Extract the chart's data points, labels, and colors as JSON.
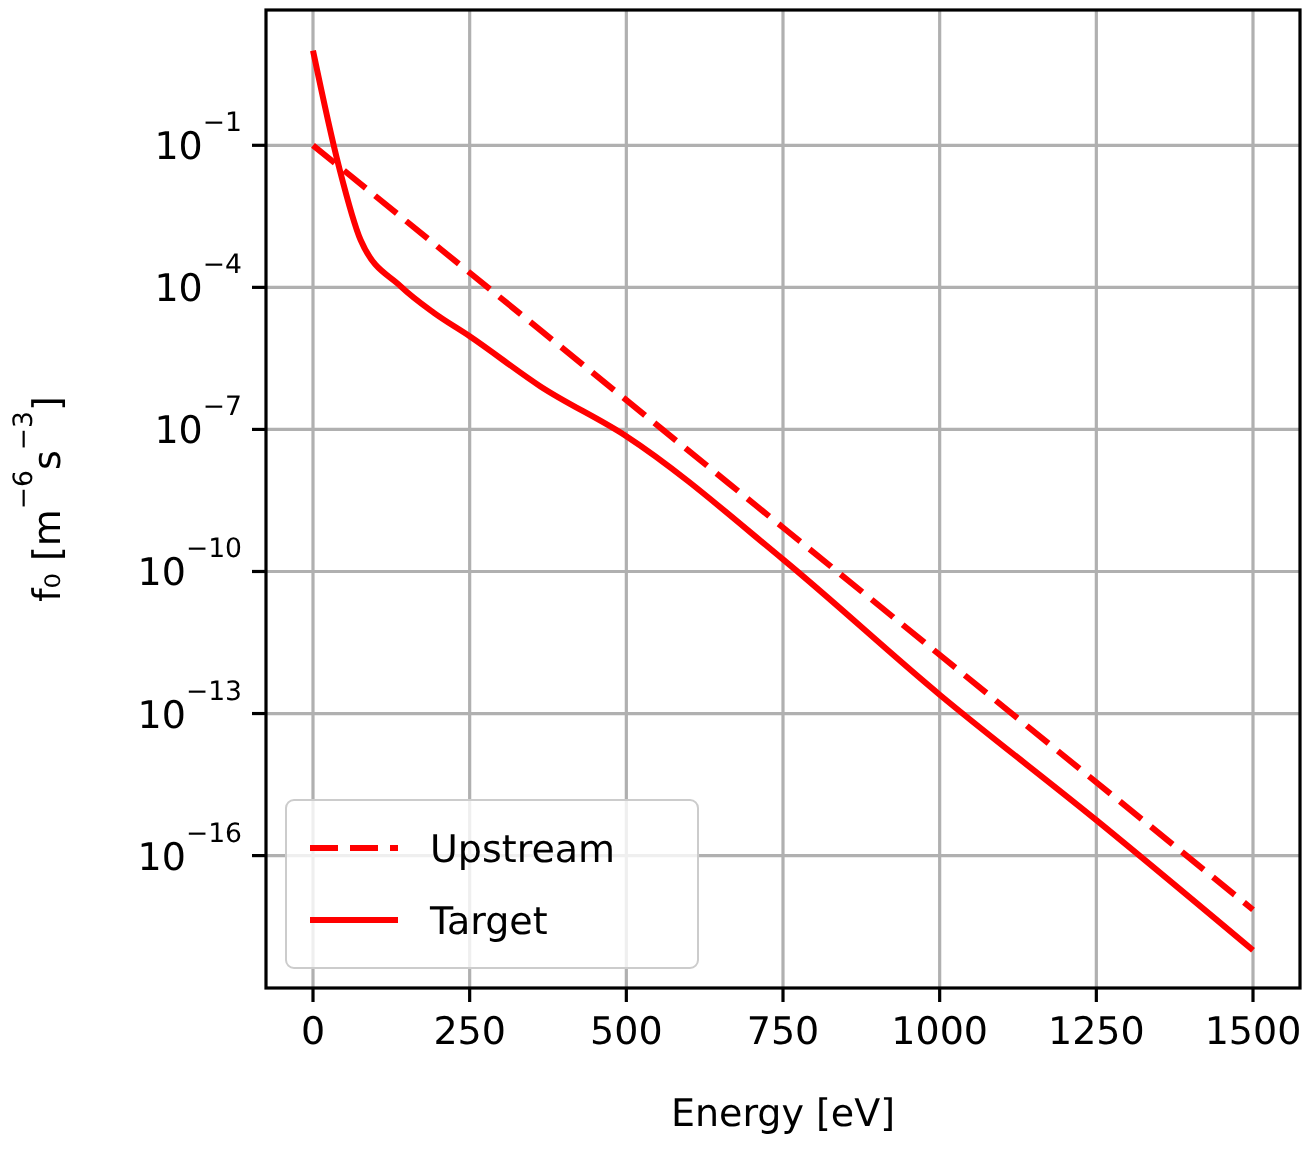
{
  "chart_data": {
    "type": "line",
    "xlabel": "Energy [eV]",
    "ylabel": "f₀ [m$^{−6}$s$^{−3}$]",
    "log": "y",
    "grid": true,
    "legend": "bottom left",
    "xlim": [
      -75,
      1575
    ],
    "xticks": [
      0,
      250,
      500,
      750,
      1000,
      1250,
      1500
    ],
    "ylim": [
      1.6e-19,
      72
    ],
    "yticks": [
      {
        "value": 0.1,
        "label": "10$^{−1}$"
      },
      {
        "value": 0.0001,
        "label": "10$^{−4}$"
      },
      {
        "value": 1e-07,
        "label": "10$^{−7}$"
      },
      {
        "value": 1e-10,
        "label": "10$^{−10}$"
      },
      {
        "value": 1e-13,
        "label": "10$^{−13}$"
      },
      {
        "value": 1e-16,
        "label": "10$^{−16}$"
      }
    ],
    "series": [
      {
        "name": "Upstream",
        "color": "#ff0000",
        "line_style": "dashed",
        "x": [
          0,
          750,
          1500
        ],
        "values": [
          0.1,
          8.5e-10,
          7.2e-18
        ]
      },
      {
        "name": "Target",
        "color": "#ff0000",
        "line_style": "solid",
        "x": [
          0,
          41,
          76,
          140,
          193,
          250,
          363,
          500,
          750,
          1000,
          1250,
          1500
        ],
        "values": [
          10,
          0.037,
          0.001,
          0.000105,
          2.9e-05,
          9.3e-06,
          8.1e-07,
          7.2e-08,
          1.8e-10,
          2.5e-13,
          5.6e-16,
          1e-18
        ]
      }
    ]
  }
}
